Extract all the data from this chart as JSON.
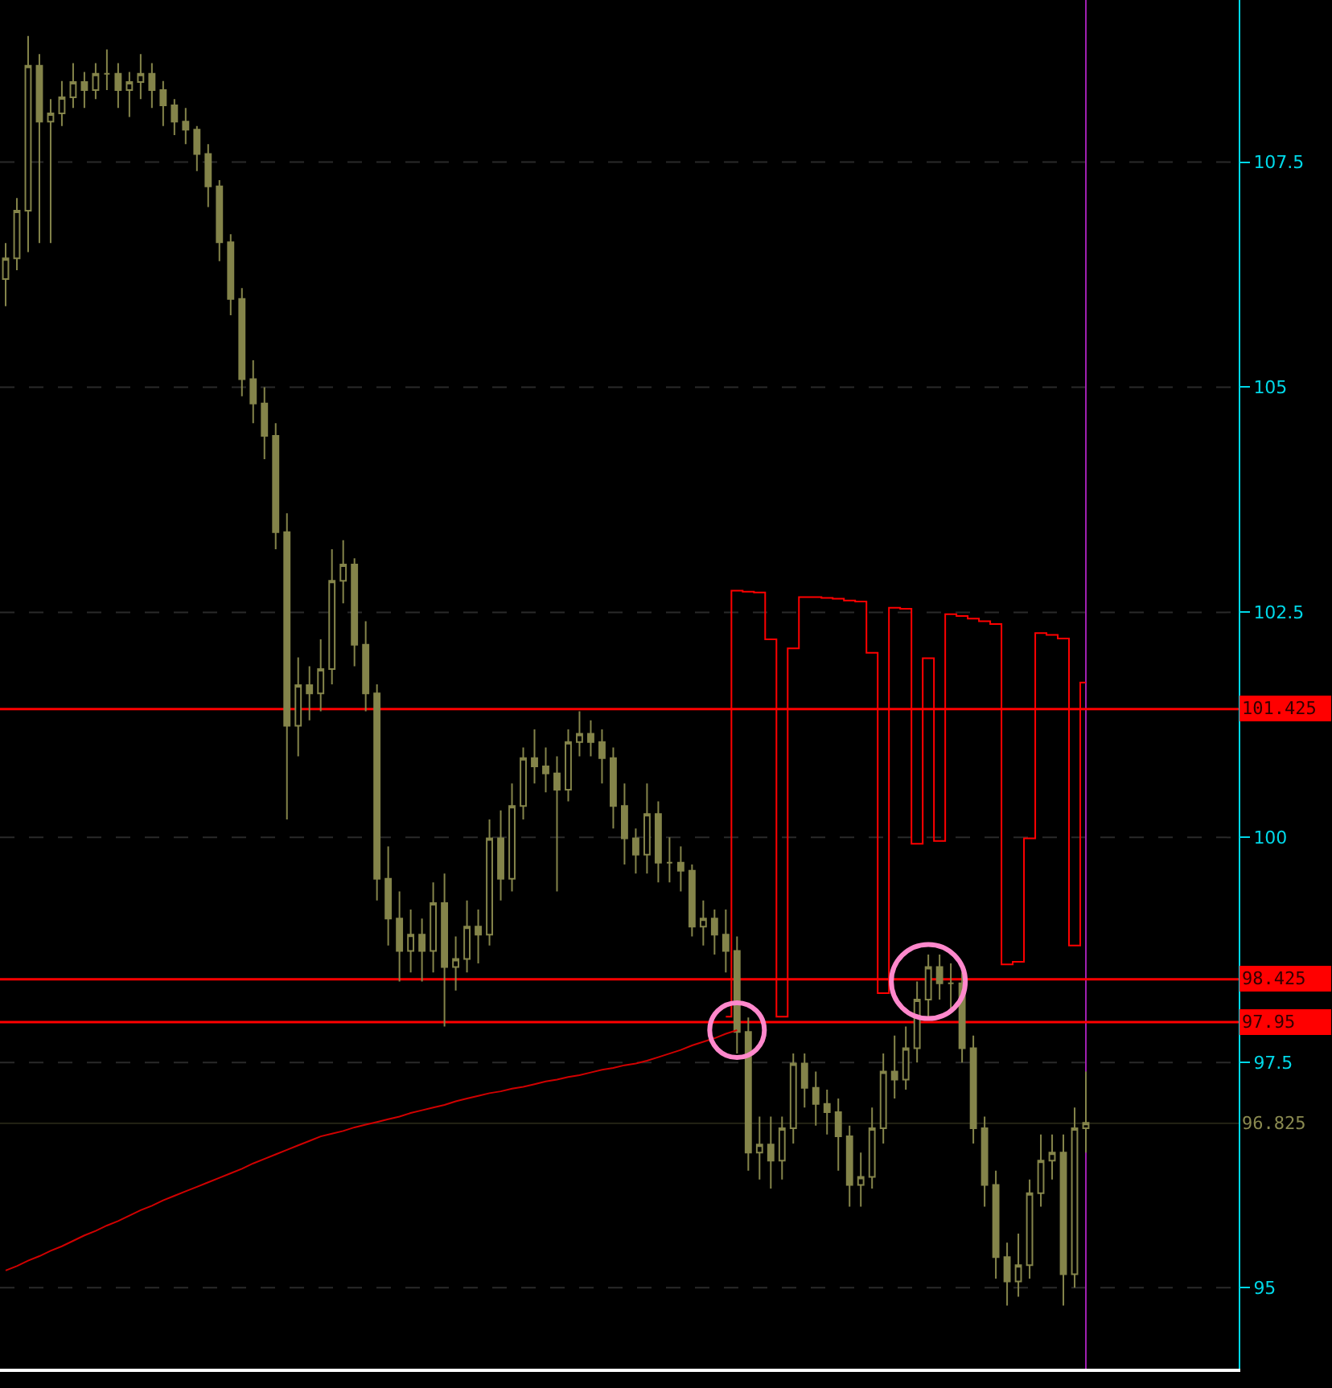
{
  "chart_data": {
    "type": "candlestick",
    "color": "#84844a",
    "categories": [
      null,
      null,
      null,
      null,
      null,
      null,
      null,
      null,
      null,
      null,
      null,
      null,
      null,
      null,
      null,
      null,
      null,
      null,
      null,
      null,
      null,
      null,
      null,
      null,
      null,
      null,
      null,
      null,
      null,
      null,
      null,
      null,
      null,
      null,
      null,
      null,
      null,
      null,
      null,
      null,
      null,
      null,
      null,
      null,
      null,
      null,
      null,
      null,
      null,
      null,
      null,
      null,
      null,
      null,
      null,
      null,
      null,
      null,
      null,
      null,
      null,
      null,
      null,
      null,
      null,
      null,
      null,
      null,
      null,
      null,
      null,
      null,
      null,
      null,
      null,
      null,
      null,
      null,
      null,
      null,
      null,
      null,
      null,
      null,
      null,
      null,
      null,
      null,
      null,
      null,
      null,
      null,
      null,
      null,
      null,
      null,
      null
    ],
    "ohlc": [
      [
        106.2,
        106.6,
        105.9,
        106.43
      ],
      [
        106.43,
        107.1,
        106.3,
        106.96
      ],
      [
        106.96,
        108.9,
        106.5,
        108.57
      ],
      [
        108.57,
        108.7,
        106.6,
        107.95
      ],
      [
        107.95,
        108.2,
        106.6,
        108.04
      ],
      [
        108.04,
        108.4,
        107.9,
        108.22
      ],
      [
        108.22,
        108.6,
        108.1,
        108.39
      ],
      [
        108.39,
        108.5,
        108.1,
        108.3
      ],
      [
        108.3,
        108.6,
        108.2,
        108.48
      ],
      [
        108.48,
        108.75,
        108.3,
        108.48
      ],
      [
        108.48,
        108.6,
        108.1,
        108.3
      ],
      [
        108.3,
        108.5,
        108.0,
        108.39
      ],
      [
        108.39,
        108.7,
        108.2,
        108.48
      ],
      [
        108.48,
        108.6,
        108.1,
        108.3
      ],
      [
        108.3,
        108.4,
        107.9,
        108.13
      ],
      [
        108.13,
        108.2,
        107.8,
        107.95
      ],
      [
        107.95,
        108.1,
        107.7,
        107.86
      ],
      [
        107.86,
        107.9,
        107.4,
        107.59
      ],
      [
        107.59,
        107.7,
        107.0,
        107.23
      ],
      [
        107.23,
        107.3,
        106.4,
        106.61
      ],
      [
        106.61,
        106.7,
        105.8,
        105.98
      ],
      [
        105.98,
        106.1,
        104.9,
        105.09
      ],
      [
        105.09,
        105.3,
        104.6,
        104.82
      ],
      [
        104.82,
        105.0,
        104.2,
        104.46
      ],
      [
        104.46,
        104.6,
        103.2,
        103.39
      ],
      [
        103.39,
        103.6,
        100.2,
        101.24
      ],
      [
        101.24,
        102.0,
        100.9,
        101.69
      ],
      [
        101.69,
        101.9,
        101.3,
        101.6
      ],
      [
        101.6,
        102.2,
        101.4,
        101.87
      ],
      [
        101.87,
        103.2,
        101.7,
        102.85
      ],
      [
        102.85,
        103.3,
        102.6,
        103.03
      ],
      [
        103.03,
        103.1,
        101.9,
        102.14
      ],
      [
        102.14,
        102.4,
        101.4,
        101.6
      ],
      [
        101.6,
        101.7,
        99.3,
        99.54
      ],
      [
        99.54,
        99.9,
        98.8,
        99.1
      ],
      [
        99.1,
        99.4,
        98.4,
        98.74
      ],
      [
        98.74,
        99.2,
        98.5,
        98.92
      ],
      [
        98.92,
        99.1,
        98.4,
        98.74
      ],
      [
        98.74,
        99.5,
        98.5,
        99.27
      ],
      [
        99.27,
        99.6,
        97.9,
        98.56
      ],
      [
        98.56,
        98.9,
        98.3,
        98.65
      ],
      [
        98.65,
        99.3,
        98.5,
        99.01
      ],
      [
        99.01,
        99.2,
        98.6,
        98.92
      ],
      [
        98.92,
        100.2,
        98.8,
        99.99
      ],
      [
        99.99,
        100.3,
        99.3,
        99.54
      ],
      [
        99.54,
        100.6,
        99.4,
        100.35
      ],
      [
        100.35,
        101.0,
        100.2,
        100.88
      ],
      [
        100.88,
        101.2,
        100.6,
        100.79
      ],
      [
        100.79,
        101.0,
        100.5,
        100.71
      ],
      [
        100.71,
        100.9,
        99.4,
        100.53
      ],
      [
        100.53,
        101.2,
        100.4,
        101.06
      ],
      [
        101.06,
        101.4,
        100.9,
        101.15
      ],
      [
        101.15,
        101.3,
        100.9,
        101.06
      ],
      [
        101.06,
        101.2,
        100.6,
        100.88
      ],
      [
        100.88,
        101.0,
        100.1,
        100.35
      ],
      [
        100.35,
        100.6,
        99.7,
        99.99
      ],
      [
        99.99,
        100.1,
        99.6,
        99.81
      ],
      [
        99.81,
        100.6,
        99.6,
        100.26
      ],
      [
        100.26,
        100.4,
        99.5,
        99.72
      ],
      [
        99.72,
        100.0,
        99.5,
        99.72
      ],
      [
        99.72,
        99.9,
        99.4,
        99.63
      ],
      [
        99.63,
        99.7,
        98.9,
        99.01
      ],
      [
        99.01,
        99.3,
        98.8,
        99.1
      ],
      [
        99.1,
        99.2,
        98.7,
        98.92
      ],
      [
        98.92,
        99.2,
        98.5,
        98.74
      ],
      [
        98.74,
        98.9,
        97.6,
        97.84
      ],
      [
        97.84,
        98.0,
        96.3,
        96.5
      ],
      [
        96.5,
        96.9,
        96.2,
        96.59
      ],
      [
        96.59,
        96.9,
        96.1,
        96.41
      ],
      [
        96.41,
        96.9,
        96.2,
        96.77
      ],
      [
        96.77,
        97.6,
        96.6,
        97.49
      ],
      [
        97.49,
        97.6,
        97.0,
        97.22
      ],
      [
        97.22,
        97.4,
        96.8,
        97.04
      ],
      [
        97.04,
        97.2,
        96.7,
        96.95
      ],
      [
        96.95,
        97.1,
        96.3,
        96.68
      ],
      [
        96.68,
        96.8,
        95.9,
        96.14
      ],
      [
        96.14,
        96.5,
        95.9,
        96.23
      ],
      [
        96.23,
        97.0,
        96.1,
        96.77
      ],
      [
        96.77,
        97.6,
        96.6,
        97.4
      ],
      [
        97.4,
        97.8,
        97.1,
        97.31
      ],
      [
        97.31,
        97.9,
        97.2,
        97.66
      ],
      [
        97.66,
        98.4,
        97.5,
        98.2
      ],
      [
        98.2,
        98.7,
        98.0,
        98.56
      ],
      [
        98.56,
        98.7,
        98.2,
        98.38
      ],
      [
        98.38,
        98.6,
        98.1,
        98.38
      ],
      [
        98.38,
        98.5,
        97.5,
        97.66
      ],
      [
        97.66,
        97.8,
        96.6,
        96.77
      ],
      [
        96.77,
        96.9,
        95.9,
        96.14
      ],
      [
        96.14,
        96.3,
        95.1,
        95.34
      ],
      [
        95.34,
        95.5,
        94.8,
        95.07
      ],
      [
        95.07,
        95.6,
        94.9,
        95.25
      ],
      [
        95.25,
        96.2,
        95.1,
        96.05
      ],
      [
        96.05,
        96.7,
        95.9,
        96.41
      ],
      [
        96.41,
        96.7,
        96.2,
        96.5
      ],
      [
        96.5,
        96.7,
        94.8,
        95.15
      ],
      [
        95.15,
        97.0,
        95.0,
        96.77
      ],
      [
        96.77,
        97.4,
        96.5,
        96.83
      ]
    ],
    "series": [
      {
        "type": "line",
        "color": "#d00000",
        "values": [
          95.19,
          95.24,
          95.3,
          95.35,
          95.41,
          95.46,
          95.52,
          95.58,
          95.63,
          95.69,
          95.74,
          95.8,
          95.86,
          95.91,
          95.97,
          96.02,
          96.07,
          96.12,
          96.17,
          96.22,
          96.27,
          96.32,
          96.38,
          96.43,
          96.48,
          96.53,
          96.58,
          96.63,
          96.68,
          96.71,
          96.74,
          96.78,
          96.81,
          96.84,
          96.87,
          96.9,
          96.94,
          96.97,
          97.0,
          97.03,
          97.07,
          97.1,
          97.13,
          97.16,
          97.18,
          97.21,
          97.23,
          97.26,
          97.29,
          97.31,
          97.34,
          97.36,
          97.39,
          97.42,
          97.44,
          97.47,
          97.49,
          97.52,
          97.56,
          97.6,
          97.64,
          97.69,
          97.73,
          97.77,
          97.82,
          97.86,
          null,
          null,
          null,
          null,
          null,
          null,
          null,
          null,
          null,
          null,
          null,
          null,
          null,
          null,
          null,
          null,
          null,
          null,
          null,
          null,
          null,
          null,
          null,
          null,
          null,
          null,
          null,
          null,
          null,
          null,
          null
        ]
      },
      {
        "type": "step",
        "color": "#ff0000",
        "values": [
          null,
          null,
          null,
          null,
          null,
          null,
          null,
          null,
          null,
          null,
          null,
          null,
          null,
          null,
          null,
          null,
          null,
          null,
          null,
          null,
          null,
          null,
          null,
          null,
          null,
          null,
          null,
          null,
          null,
          null,
          null,
          null,
          null,
          null,
          null,
          null,
          null,
          null,
          null,
          null,
          null,
          null,
          null,
          null,
          null,
          null,
          null,
          null,
          null,
          null,
          null,
          null,
          null,
          null,
          null,
          null,
          null,
          null,
          null,
          null,
          null,
          null,
          null,
          null,
          98.01,
          102.74,
          102.73,
          102.72,
          102.2,
          98.01,
          102.1,
          102.67,
          102.67,
          102.66,
          102.65,
          102.63,
          102.62,
          102.05,
          98.27,
          102.55,
          102.54,
          99.93,
          101.99,
          99.96,
          102.48,
          102.46,
          102.43,
          102.4,
          102.37,
          98.59,
          98.62,
          99.99,
          102.27,
          102.25,
          102.21,
          98.8,
          101.72
        ]
      }
    ],
    "ylim": [
      94.1,
      109.3
    ],
    "yticks": [
      95,
      97.5,
      100,
      102.5,
      105,
      107.5
    ],
    "ref_lines": [
      {
        "axis": "y",
        "value": 101.425,
        "label": "101.425",
        "color": "#ff0000"
      },
      {
        "axis": "y",
        "value": 98.425,
        "label": "98.425",
        "color": "#ff0000"
      },
      {
        "axis": "y",
        "value": 97.95,
        "label": "97.95",
        "color": "#ff0000"
      },
      {
        "axis": "y",
        "value": 96.825,
        "label": "96.825",
        "color": "#8a8a50"
      }
    ],
    "grid": "y"
  }
}
